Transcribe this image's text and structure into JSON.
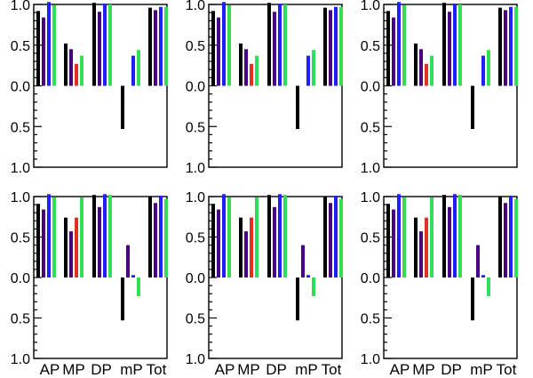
{
  "colors": {
    "black": "#000000",
    "purple": "#4b0082",
    "blue": "#2020ff",
    "red": "#e03020",
    "green": "#33dd55"
  },
  "chart_data": [
    {
      "type": "bar",
      "panel": "top-left",
      "categories": [
        "AP",
        "MP",
        "DP",
        "mP",
        "Tot"
      ],
      "show_category_labels": false,
      "ytick_labels": [
        "1.0",
        "0.5",
        "0.0",
        "0.5",
        "1.0"
      ],
      "ylim": [
        -1.0,
        1.0
      ],
      "series": [
        {
          "name": "black",
          "color": "#000000",
          "values": [
            0.92,
            0.52,
            1.02,
            -0.53,
            0.96
          ]
        },
        {
          "name": "purple",
          "color": "#4b0082",
          "values": [
            0.84,
            0.45,
            0.91,
            0.0,
            0.93
          ]
        },
        {
          "name": "blue",
          "color": "#2020ff",
          "values": [
            1.03,
            0.27,
            1.01,
            0.37,
            0.97
          ]
        },
        {
          "name": "red_green",
          "color": "#33dd55",
          "values": [
            0.99,
            0.37,
            1.0,
            0.44,
            0.97
          ]
        }
      ],
      "bar_colors": [
        [
          "#000000",
          "#4b0082",
          "#2020ff",
          "#33dd55"
        ],
        [
          "#000000",
          "#4b0082",
          "#e03020",
          "#33dd55"
        ],
        [
          "#000000",
          "#4b0082",
          "#2020ff",
          "#33dd55"
        ],
        [
          "#000000",
          "#4b0082",
          "#2020ff",
          "#33dd55"
        ],
        [
          "#000000",
          "#4b0082",
          "#2020ff",
          "#33dd55"
        ]
      ]
    },
    {
      "type": "bar",
      "panel": "top-middle",
      "categories": [
        "AP",
        "MP",
        "DP",
        "mP",
        "Tot"
      ],
      "show_category_labels": false,
      "ytick_labels": [
        "1.0",
        "0.5",
        "0.0",
        "0.5",
        "1.0"
      ],
      "ylim": [
        -1.0,
        1.0
      ],
      "series": [
        {
          "name": "black",
          "color": "#000000",
          "values": [
            0.92,
            0.52,
            1.02,
            -0.53,
            0.96
          ]
        },
        {
          "name": "purple",
          "color": "#4b0082",
          "values": [
            0.84,
            0.45,
            0.91,
            0.0,
            0.93
          ]
        },
        {
          "name": "blue",
          "color": "#2020ff",
          "values": [
            1.03,
            0.27,
            1.01,
            0.37,
            0.97
          ]
        },
        {
          "name": "red_green",
          "color": "#33dd55",
          "values": [
            0.99,
            0.37,
            1.0,
            0.44,
            0.97
          ]
        }
      ],
      "bar_colors": [
        [
          "#000000",
          "#4b0082",
          "#2020ff",
          "#33dd55"
        ],
        [
          "#000000",
          "#4b0082",
          "#e03020",
          "#33dd55"
        ],
        [
          "#000000",
          "#4b0082",
          "#2020ff",
          "#33dd55"
        ],
        [
          "#000000",
          "#4b0082",
          "#2020ff",
          "#33dd55"
        ],
        [
          "#000000",
          "#4b0082",
          "#2020ff",
          "#33dd55"
        ]
      ]
    },
    {
      "type": "bar",
      "panel": "top-right",
      "categories": [
        "AP",
        "MP",
        "DP",
        "mP",
        "Tot"
      ],
      "show_category_labels": false,
      "ytick_labels": [
        "1.0",
        "0.5",
        "0.0",
        "0.5",
        "1.0"
      ],
      "ylim": [
        -1.0,
        1.0
      ],
      "series": [
        {
          "name": "black",
          "color": "#000000",
          "values": [
            0.92,
            0.52,
            1.02,
            -0.53,
            0.96
          ]
        },
        {
          "name": "purple",
          "color": "#4b0082",
          "values": [
            0.84,
            0.45,
            0.91,
            0.0,
            0.93
          ]
        },
        {
          "name": "blue",
          "color": "#2020ff",
          "values": [
            1.03,
            0.27,
            1.01,
            0.37,
            0.97
          ]
        },
        {
          "name": "red_green",
          "color": "#33dd55",
          "values": [
            0.99,
            0.37,
            1.0,
            0.44,
            0.97
          ]
        }
      ],
      "bar_colors": [
        [
          "#000000",
          "#4b0082",
          "#2020ff",
          "#33dd55"
        ],
        [
          "#000000",
          "#4b0082",
          "#e03020",
          "#33dd55"
        ],
        [
          "#000000",
          "#4b0082",
          "#2020ff",
          "#33dd55"
        ],
        [
          "#000000",
          "#4b0082",
          "#2020ff",
          "#33dd55"
        ],
        [
          "#000000",
          "#4b0082",
          "#2020ff",
          "#33dd55"
        ]
      ]
    },
    {
      "type": "bar",
      "panel": "bottom-left",
      "categories": [
        "AP",
        "MP",
        "DP",
        "mP",
        "Tot"
      ],
      "show_category_labels": true,
      "ytick_labels": [
        "1.0",
        "0.5",
        "0.0",
        "0.5",
        "1.0"
      ],
      "ylim": [
        -1.0,
        1.0
      ],
      "series": [
        {
          "name": "black",
          "color": "#000000",
          "values": [
            0.91,
            0.74,
            1.02,
            -0.53,
            1.0
          ]
        },
        {
          "name": "purple",
          "color": "#4b0082",
          "values": [
            0.84,
            0.57,
            0.87,
            0.4,
            0.92
          ]
        },
        {
          "name": "blue",
          "color": "#2020ff",
          "values": [
            1.03,
            0.74,
            1.03,
            0.03,
            1.01
          ]
        },
        {
          "name": "red_green",
          "color": "#33dd55",
          "values": [
            0.99,
            0.99,
            1.02,
            -0.23,
            0.97
          ]
        }
      ],
      "bar_colors": [
        [
          "#000000",
          "#4b0082",
          "#2020ff",
          "#33dd55"
        ],
        [
          "#000000",
          "#4b0082",
          "#e03020",
          "#33dd55"
        ],
        [
          "#000000",
          "#4b0082",
          "#2020ff",
          "#33dd55"
        ],
        [
          "#000000",
          "#4b0082",
          "#2020ff",
          "#33dd55"
        ],
        [
          "#000000",
          "#4b0082",
          "#2020ff",
          "#33dd55"
        ]
      ]
    },
    {
      "type": "bar",
      "panel": "bottom-middle",
      "categories": [
        "AP",
        "MP",
        "DP",
        "mP",
        "Tot"
      ],
      "show_category_labels": true,
      "ytick_labels": [
        "1.0",
        "0.5",
        "0.0",
        "0.5",
        "1.0"
      ],
      "ylim": [
        -1.0,
        1.0
      ],
      "series": [
        {
          "name": "black",
          "color": "#000000",
          "values": [
            0.91,
            0.74,
            1.02,
            -0.53,
            1.0
          ]
        },
        {
          "name": "purple",
          "color": "#4b0082",
          "values": [
            0.84,
            0.57,
            0.87,
            0.4,
            0.92
          ]
        },
        {
          "name": "blue",
          "color": "#2020ff",
          "values": [
            1.03,
            0.74,
            1.03,
            0.03,
            1.01
          ]
        },
        {
          "name": "red_green",
          "color": "#33dd55",
          "values": [
            0.99,
            0.99,
            1.02,
            -0.23,
            0.97
          ]
        }
      ],
      "bar_colors": [
        [
          "#000000",
          "#4b0082",
          "#2020ff",
          "#33dd55"
        ],
        [
          "#000000",
          "#4b0082",
          "#e03020",
          "#33dd55"
        ],
        [
          "#000000",
          "#4b0082",
          "#2020ff",
          "#33dd55"
        ],
        [
          "#000000",
          "#4b0082",
          "#2020ff",
          "#33dd55"
        ],
        [
          "#000000",
          "#4b0082",
          "#2020ff",
          "#33dd55"
        ]
      ]
    },
    {
      "type": "bar",
      "panel": "bottom-right",
      "categories": [
        "AP",
        "MP",
        "DP",
        "mP",
        "Tot"
      ],
      "show_category_labels": true,
      "ytick_labels": [
        "1.0",
        "0.5",
        "0.0",
        "0.5",
        "1.0"
      ],
      "ylim": [
        -1.0,
        1.0
      ],
      "series": [
        {
          "name": "black",
          "color": "#000000",
          "values": [
            0.91,
            0.74,
            1.02,
            -0.53,
            1.0
          ]
        },
        {
          "name": "purple",
          "color": "#4b0082",
          "values": [
            0.84,
            0.57,
            0.87,
            0.4,
            0.92
          ]
        },
        {
          "name": "blue",
          "color": "#2020ff",
          "values": [
            1.03,
            0.74,
            1.03,
            0.03,
            1.01
          ]
        },
        {
          "name": "red_green",
          "color": "#33dd55",
          "values": [
            0.99,
            0.99,
            1.02,
            -0.23,
            0.97
          ]
        }
      ],
      "bar_colors": [
        [
          "#000000",
          "#4b0082",
          "#2020ff",
          "#33dd55"
        ],
        [
          "#000000",
          "#4b0082",
          "#e03020",
          "#33dd55"
        ],
        [
          "#000000",
          "#4b0082",
          "#2020ff",
          "#33dd55"
        ],
        [
          "#000000",
          "#4b0082",
          "#2020ff",
          "#33dd55"
        ],
        [
          "#000000",
          "#4b0082",
          "#2020ff",
          "#33dd55"
        ]
      ]
    }
  ]
}
